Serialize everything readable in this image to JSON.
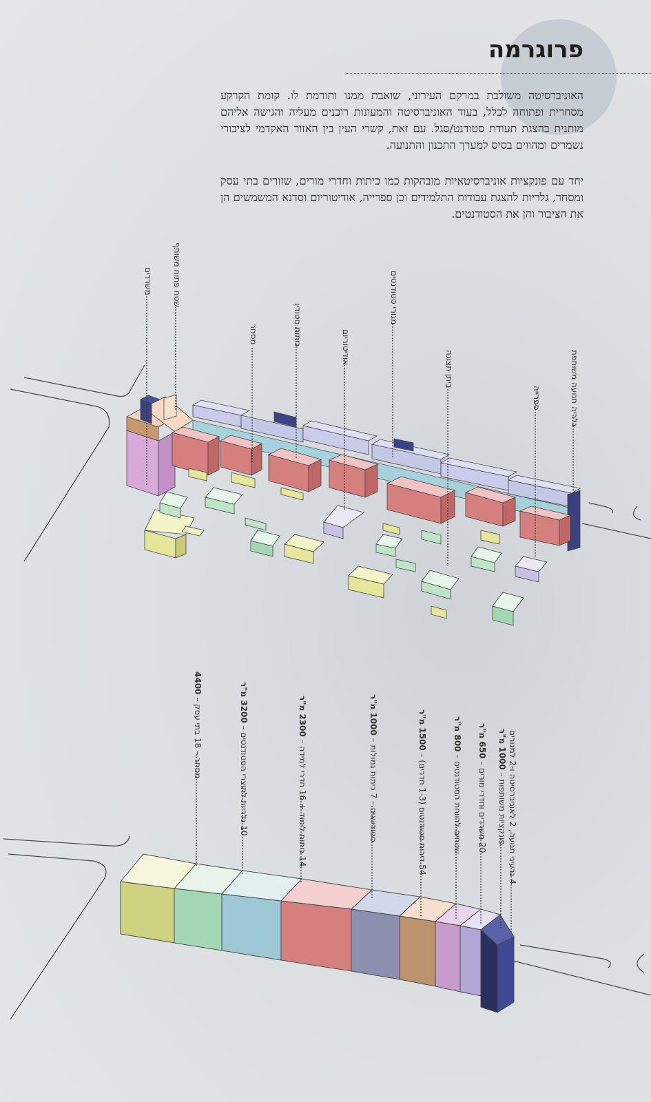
{
  "header": {
    "title": "פרוגרמה",
    "paragraph_1": "האוניברסיטה משולבת במרקם העירוני, שואבת ממנו ותורמת לו. קומת הקרקע מסחרית ופתוחה לכלל, בעוד האוניברסיטה והמעונות רוכנים מעליה והגישה אליהם מותנית בהצגת תעודת סטודנט/סגל. עם זאת, קשרי העין בין האזור האקדמי לציבורי נשמרים ומהווים בסיס למערך התכנון והתנועה.",
    "paragraph_2": "יחד עם פונקציות אוניברסיטאיות מובהקות כמו כיתות וחדרי מורים, שזורים בתי עסק ומסחר, גלריות להצגת עבודות התלמידים וכן ספרייה, אודיטוריום וסדנא המשמשים הן את הציבור והן את הסטודנטים."
  },
  "axon_labels": [
    {
      "text": "משרדים"
    },
    {
      "text": "שטח פתוח משותף"
    },
    {
      "text": "מסחר"
    },
    {
      "text": "כיתות סטודיו"
    },
    {
      "text": "אודיטוריום"
    },
    {
      "text": "מגורי סטודנטים"
    },
    {
      "text": "ביתן תצוגה"
    },
    {
      "text": "ספרייה"
    },
    {
      "text": "גלריה תנועה משותפת"
    }
  ],
  "program_labels": [
    {
      "text": "מסחר – 18 בתי עסק",
      "area": "4400"
    },
    {
      "text": "10 גלריות לתוצרי הסטודנטים",
      "area": "3200 מ\"ר"
    },
    {
      "text": "14 כיתות לימוד + 16 חדרי למידה",
      "area": "2300 מ\"ר"
    },
    {
      "text": "סטודיואים – 7 כיתות גמולות",
      "area": "1000 מ\"ר"
    },
    {
      "text": "54 דירות סטודנטים (1-3 חדרים)",
      "area": "1500 מ\"ר"
    },
    {
      "text": "שטחים לרווחת הסטודנטים",
      "area": "800 מ\"ר"
    },
    {
      "text": "20 משרדים וחדרי מורים",
      "area": "650 מ\"ר"
    },
    {
      "text": "פונקציות משותפות",
      "area": "1000 מ\"ר"
    },
    {
      "text": "4 גרעיני תנועה, 2 לאוניברסיטה ו-2 למגורים",
      "area": ""
    }
  ],
  "colors": {
    "commerce": "#cfd27e",
    "gallery": "#a3d7b4",
    "classrooms": "#9ec8d4",
    "studios": "#d67f7f",
    "dorms": "#8a90ad",
    "welfare": "#bb936e",
    "offices": "#c79ccd",
    "shared": "#b1a6d6",
    "cores": "#343a78"
  }
}
